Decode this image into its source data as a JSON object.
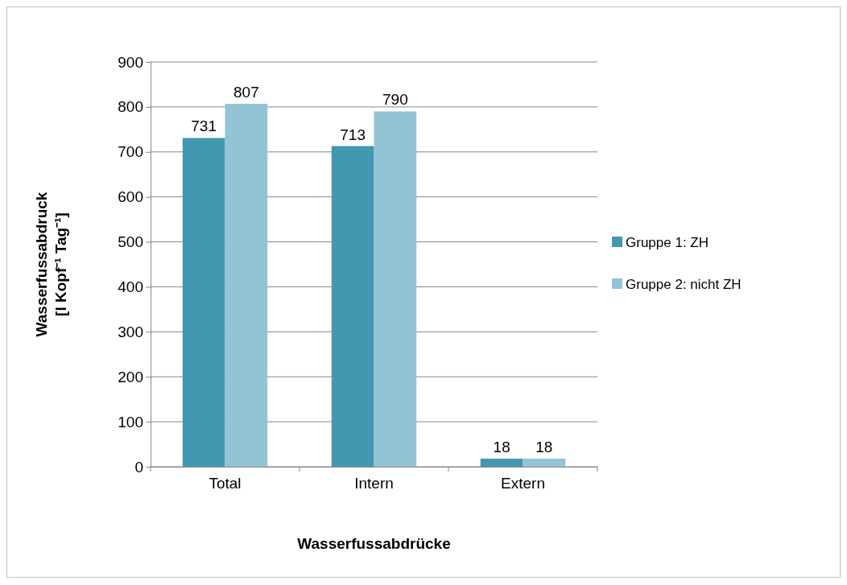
{
  "chart_data": {
    "type": "bar",
    "xlabel": "Wasserfussabdrücke",
    "ylabel": "Wasserfussabdruck\n[l Kopf⁻¹ Tag⁻¹]",
    "categories": [
      "Total",
      "Intern",
      "Extern"
    ],
    "series": [
      {
        "name": "Gruppe 1: ZH",
        "color": "#4198b0",
        "values": [
          731,
          713,
          18
        ]
      },
      {
        "name": "Gruppe 2: nicht ZH",
        "color": "#93c4d5",
        "values": [
          807,
          790,
          18
        ]
      }
    ],
    "ylim": [
      0,
      900
    ],
    "yticks": [
      0,
      100,
      200,
      300,
      400,
      500,
      600,
      700,
      800,
      900
    ],
    "grid": "y",
    "legend": "right",
    "data_labels": true
  }
}
